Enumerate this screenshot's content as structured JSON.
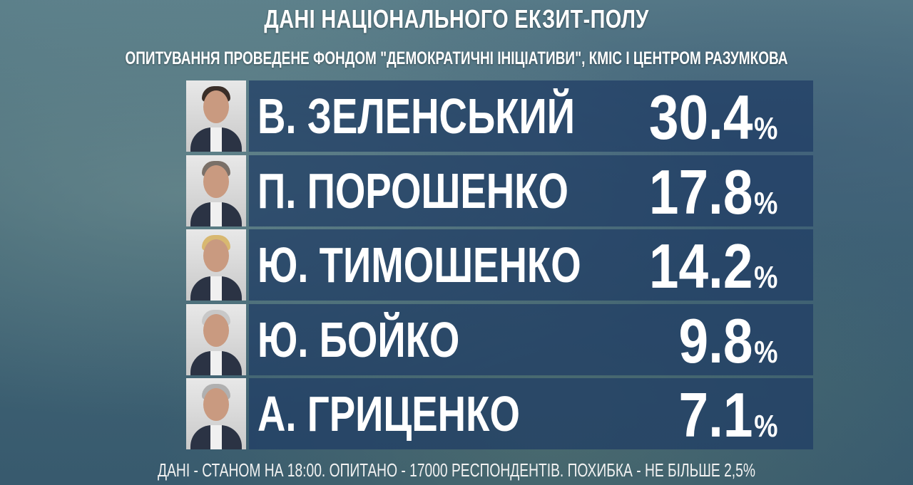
{
  "header": {
    "title": "ДАНІ НАЦІОНАЛЬНОГО ЕКЗИТ-ПОЛУ",
    "subtitle": "ОПИТУВАННЯ ПРОВЕДЕНЕ ФОНДОМ \"ДЕМОКРАТИЧНІ ІНІЦІАТИВИ\", КМІС І ЦЕНТРОМ РАЗУМКОВА"
  },
  "chart_data": {
    "type": "table",
    "title": "ДАНІ НАЦІОНАЛЬНОГО ЕКЗИТ-ПОЛУ",
    "unit": "%",
    "rows": [
      {
        "name": "В. ЗЕЛЕНСЬКИЙ",
        "value": "30.4"
      },
      {
        "name": "П. ПОРОШЕНКО",
        "value": "17.8"
      },
      {
        "name": "Ю. ТИМОШЕНКО",
        "value": "14.2"
      },
      {
        "name": "Ю. БОЙКО",
        "value": "9.8"
      },
      {
        "name": "А. ГРИЦЕНКО",
        "value": "7.1"
      }
    ]
  },
  "footer": {
    "note": "ДАНІ - СТАНОМ НА 18:00. ОПИТАНО - 17000 РЕСПОНДЕНТІВ. ПОХИБКА - НЕ БІЛЬШЕ 2,5%"
  },
  "colors": {
    "bar": "#1e3c64",
    "text": "#ffffff"
  }
}
